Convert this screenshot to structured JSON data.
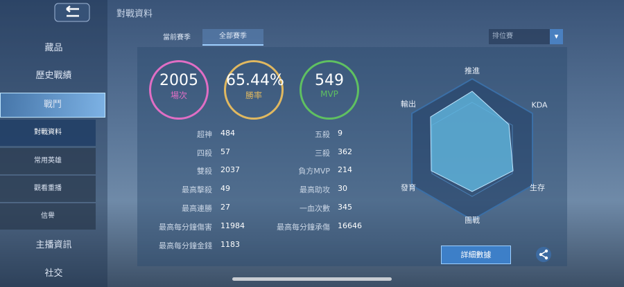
{
  "header": {
    "title": "對戰資料"
  },
  "tabs": [
    "當前賽季",
    "全部賽季"
  ],
  "mode_select": "排位賽",
  "sidebar": [
    "藏品",
    "歷史戰績",
    "戰鬥",
    "對戰資料",
    "常用英雄",
    "觀看重播",
    "信譽",
    "主播資訊",
    "社交"
  ],
  "summary": [
    {
      "value": 2005,
      "label": "場次"
    },
    {
      "value": "65.44%",
      "label": "勝率"
    },
    {
      "value": 549,
      "label": "MVP"
    }
  ],
  "stats_left": [
    {
      "label": "超神",
      "value": 484
    },
    {
      "label": "四殺",
      "value": 57
    },
    {
      "label": "雙殺",
      "value": 2037
    },
    {
      "label": "最高擊殺",
      "value": 49
    },
    {
      "label": "最高連勝",
      "value": 27
    },
    {
      "label": "最高每分鐘傷害",
      "value": 11984
    },
    {
      "label": "最高每分鐘金錢",
      "value": 1183
    }
  ],
  "stats_right": [
    {
      "label": "五殺",
      "value": 9
    },
    {
      "label": "三殺",
      "value": 362
    },
    {
      "label": "負方MVP",
      "value": 214
    },
    {
      "label": "最高助攻",
      "value": 30
    },
    {
      "label": "一血次數",
      "value": 345
    },
    {
      "label": "最高每分鐘承傷",
      "value": 16646
    }
  ],
  "radar_axes": [
    "推進",
    "KDA",
    "生存",
    "團戰",
    "發育",
    "輸出"
  ],
  "button": "詳細數據"
}
